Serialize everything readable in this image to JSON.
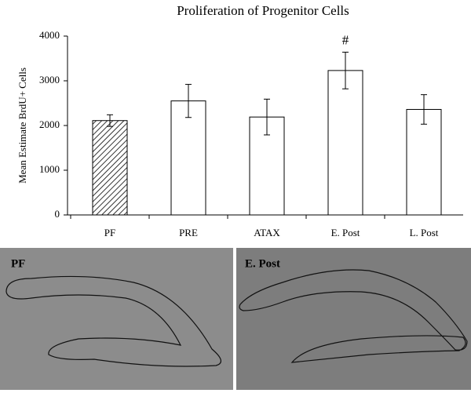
{
  "chart_data": {
    "type": "bar",
    "title": "Proliferation of Progenitor Cells",
    "y_label": "Mean Estimate BrdU+ Cells",
    "categories": [
      "PF",
      "PRE",
      "ATAX",
      "E. Post",
      "L. Post"
    ],
    "values": [
      2110,
      2550,
      2190,
      3230,
      2360
    ],
    "errors": [
      130,
      370,
      400,
      410,
      330
    ],
    "color": "#ffffff",
    "annotation": "#",
    "ylim": [
      0,
      4000
    ],
    "yticks": [
      0,
      1000,
      2000,
      3000,
      4000
    ]
  },
  "panels": [
    {
      "label": "PF"
    },
    {
      "label": "E. Post"
    }
  ]
}
